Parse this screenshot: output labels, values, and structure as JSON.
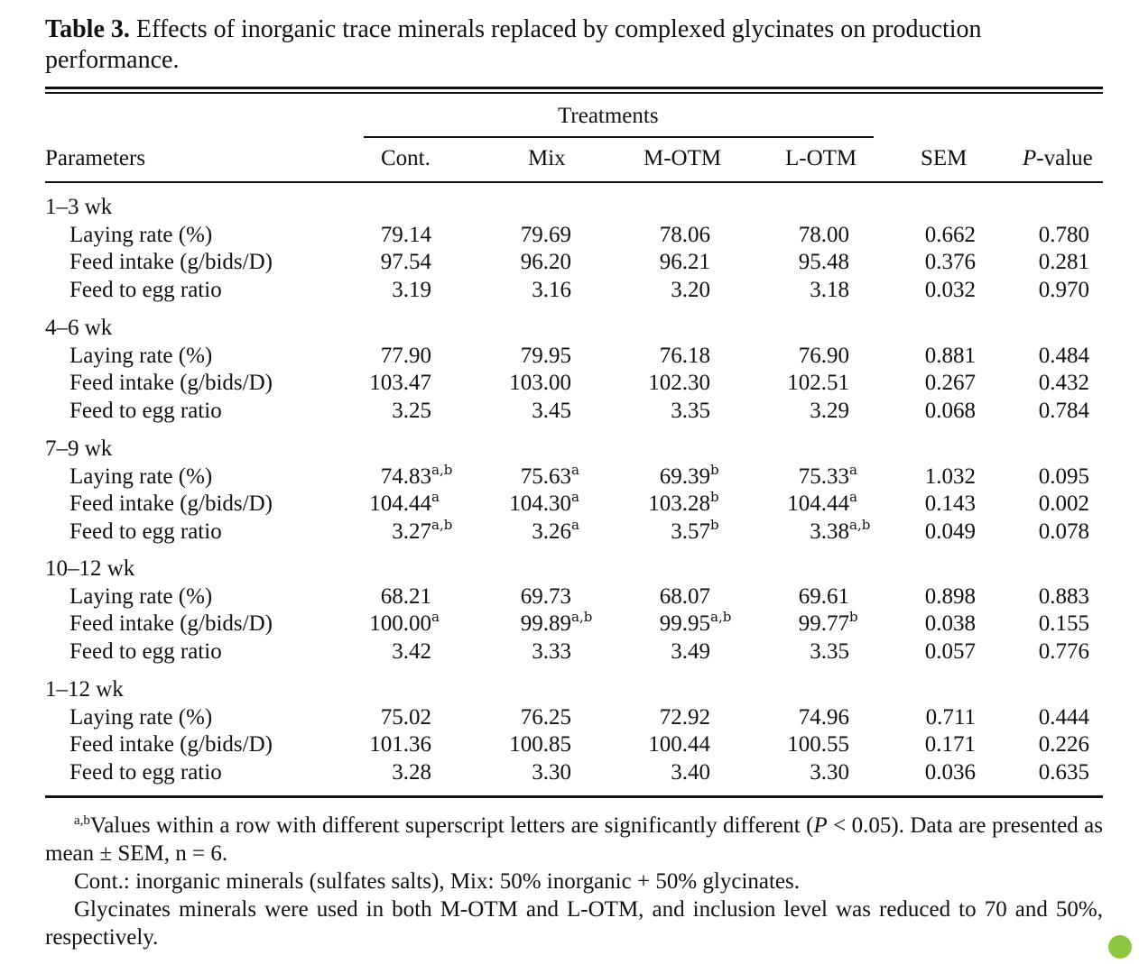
{
  "caption": {
    "label": "Table 3.",
    "text": "Effects of inorganic trace minerals replaced by complexed glycinates on production performance."
  },
  "header": {
    "group_label": "Treatments",
    "parameters": "Parameters",
    "columns": [
      "Cont.",
      "Mix",
      "M-OTM",
      "L-OTM",
      "SEM"
    ],
    "pvalue_italic": "P",
    "pvalue_rest": "-value"
  },
  "groups": [
    {
      "label": "1–3 wk",
      "rows": [
        {
          "param": "Laying rate (%)",
          "vals": [
            [
              "79.14",
              ""
            ],
            [
              "79.69",
              ""
            ],
            [
              "78.06",
              ""
            ],
            [
              "78.00",
              ""
            ]
          ],
          "sem": "0.662",
          "p": "0.780"
        },
        {
          "param": "Feed intake (g/bids/D)",
          "vals": [
            [
              "97.54",
              ""
            ],
            [
              "96.20",
              ""
            ],
            [
              "96.21",
              ""
            ],
            [
              "95.48",
              ""
            ]
          ],
          "sem": "0.376",
          "p": "0.281"
        },
        {
          "param": "Feed to egg ratio",
          "vals": [
            [
              "3.19",
              ""
            ],
            [
              "3.16",
              ""
            ],
            [
              "3.20",
              ""
            ],
            [
              "3.18",
              ""
            ]
          ],
          "sem": "0.032",
          "p": "0.970"
        }
      ]
    },
    {
      "label": "4–6 wk",
      "rows": [
        {
          "param": "Laying rate (%)",
          "vals": [
            [
              "77.90",
              ""
            ],
            [
              "79.95",
              ""
            ],
            [
              "76.18",
              ""
            ],
            [
              "76.90",
              ""
            ]
          ],
          "sem": "0.881",
          "p": "0.484"
        },
        {
          "param": "Feed intake (g/bids/D)",
          "vals": [
            [
              "103.47",
              ""
            ],
            [
              "103.00",
              ""
            ],
            [
              "102.30",
              ""
            ],
            [
              "102.51",
              ""
            ]
          ],
          "sem": "0.267",
          "p": "0.432"
        },
        {
          "param": "Feed to egg ratio",
          "vals": [
            [
              "3.25",
              ""
            ],
            [
              "3.45",
              ""
            ],
            [
              "3.35",
              ""
            ],
            [
              "3.29",
              ""
            ]
          ],
          "sem": "0.068",
          "p": "0.784"
        }
      ]
    },
    {
      "label": "7–9 wk",
      "rows": [
        {
          "param": "Laying rate (%)",
          "vals": [
            [
              "74.83",
              "a,b"
            ],
            [
              "75.63",
              "a"
            ],
            [
              "69.39",
              "b"
            ],
            [
              "75.33",
              "a"
            ]
          ],
          "sem": "1.032",
          "p": "0.095"
        },
        {
          "param": "Feed intake (g/bids/D)",
          "vals": [
            [
              "104.44",
              "a"
            ],
            [
              "104.30",
              "a"
            ],
            [
              "103.28",
              "b"
            ],
            [
              "104.44",
              "a"
            ]
          ],
          "sem": "0.143",
          "p": "0.002"
        },
        {
          "param": "Feed to egg ratio",
          "vals": [
            [
              "3.27",
              "a,b"
            ],
            [
              "3.26",
              "a"
            ],
            [
              "3.57",
              "b"
            ],
            [
              "3.38",
              "a,b"
            ]
          ],
          "sem": "0.049",
          "p": "0.078"
        }
      ]
    },
    {
      "label": "10–12 wk",
      "rows": [
        {
          "param": "Laying rate (%)",
          "vals": [
            [
              "68.21",
              ""
            ],
            [
              "69.73",
              ""
            ],
            [
              "68.07",
              ""
            ],
            [
              "69.61",
              ""
            ]
          ],
          "sem": "0.898",
          "p": "0.883"
        },
        {
          "param": "Feed intake (g/bids/D)",
          "vals": [
            [
              "100.00",
              "a"
            ],
            [
              "99.89",
              "a,b"
            ],
            [
              "99.95",
              "a,b"
            ],
            [
              "99.77",
              "b"
            ]
          ],
          "sem": "0.038",
          "p": "0.155"
        },
        {
          "param": "Feed to egg ratio",
          "vals": [
            [
              "3.42",
              ""
            ],
            [
              "3.33",
              ""
            ],
            [
              "3.49",
              ""
            ],
            [
              "3.35",
              ""
            ]
          ],
          "sem": "0.057",
          "p": "0.776"
        }
      ]
    },
    {
      "label": "1–12 wk",
      "rows": [
        {
          "param": "Laying rate (%)",
          "vals": [
            [
              "75.02",
              ""
            ],
            [
              "76.25",
              ""
            ],
            [
              "72.92",
              ""
            ],
            [
              "74.96",
              ""
            ]
          ],
          "sem": "0.711",
          "p": "0.444"
        },
        {
          "param": "Feed intake (g/bids/D)",
          "vals": [
            [
              "101.36",
              ""
            ],
            [
              "100.85",
              ""
            ],
            [
              "100.44",
              ""
            ],
            [
              "100.55",
              ""
            ]
          ],
          "sem": "0.171",
          "p": "0.226"
        },
        {
          "param": "Feed to egg ratio",
          "vals": [
            [
              "3.28",
              ""
            ],
            [
              "3.30",
              ""
            ],
            [
              "3.40",
              ""
            ],
            [
              "3.30",
              ""
            ]
          ],
          "sem": "0.036",
          "p": "0.635"
        }
      ]
    }
  ],
  "footnotes": {
    "note1_sup": "a,b",
    "note1_a": "Values within a row with different superscript letters are significantly different (",
    "note1_p": "P",
    "note1_b": " < 0.05). Data are presented as mean ± SEM, n = 6.",
    "note2": "Cont.: inorganic minerals (sulfates salts), Mix: 50% inorganic + 50% glycinates.",
    "note3": "Glycinates minerals were used in both M-OTM and L-OTM, and inclusion level was reduced to 70 and 50%, respectively."
  },
  "colors": {
    "text": "#111111",
    "badge": "#8dc63f"
  }
}
